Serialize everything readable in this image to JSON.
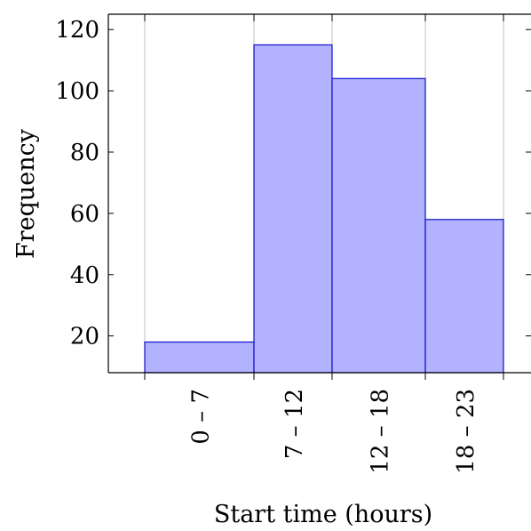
{
  "chart_data": {
    "type": "bar",
    "title": "",
    "xlabel": "Start time (hours)",
    "ylabel": "Frequency",
    "bin_edges": [
      0,
      7,
      12,
      18,
      23
    ],
    "categories": [
      "0 – 7",
      "7 – 12",
      "12 – 18",
      "18 – 23"
    ],
    "values": [
      18,
      115,
      104,
      58
    ],
    "ylim": [
      8,
      125
    ],
    "yticks": [
      20,
      40,
      60,
      80,
      100,
      120
    ],
    "grid": {
      "x": true,
      "y": false
    },
    "colors": {
      "bar_fill": "#b2b2ff",
      "bar_stroke": "#1010c8",
      "grid": "#c0c0c0",
      "axis": "#000000"
    }
  }
}
